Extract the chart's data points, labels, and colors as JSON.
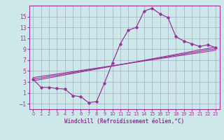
{
  "xlabel": "Windchill (Refroidissement éolien,°C)",
  "ylabel": "",
  "background_color": "#cce8e8",
  "grid_color": "#aaaacc",
  "line_color": "#993399",
  "xlim": [
    -0.5,
    23.5
  ],
  "ylim": [
    -2.0,
    17.0
  ],
  "xticks": [
    0,
    1,
    2,
    3,
    4,
    5,
    6,
    7,
    8,
    9,
    10,
    11,
    12,
    13,
    14,
    15,
    16,
    17,
    18,
    19,
    20,
    21,
    22,
    23
  ],
  "yticks": [
    -1,
    1,
    3,
    5,
    7,
    9,
    11,
    13,
    15
  ],
  "main_series_x": [
    0,
    1,
    2,
    3,
    4,
    5,
    6,
    7,
    8,
    9,
    10,
    11,
    12,
    13,
    14,
    15,
    16,
    17,
    18,
    19,
    20,
    21,
    22,
    23
  ],
  "main_series_y": [
    3.5,
    2.0,
    2.0,
    1.8,
    1.7,
    0.5,
    0.3,
    -0.8,
    -0.6,
    2.8,
    6.5,
    10.0,
    12.5,
    13.0,
    16.0,
    16.5,
    15.5,
    14.8,
    11.3,
    10.5,
    10.0,
    9.5,
    9.8,
    9.3
  ],
  "line1_x": [
    0,
    23
  ],
  "line1_y": [
    3.2,
    9.4
  ],
  "line2_x": [
    0,
    23
  ],
  "line2_y": [
    3.5,
    9.1
  ],
  "line3_x": [
    0,
    23
  ],
  "line3_y": [
    3.8,
    8.8
  ]
}
